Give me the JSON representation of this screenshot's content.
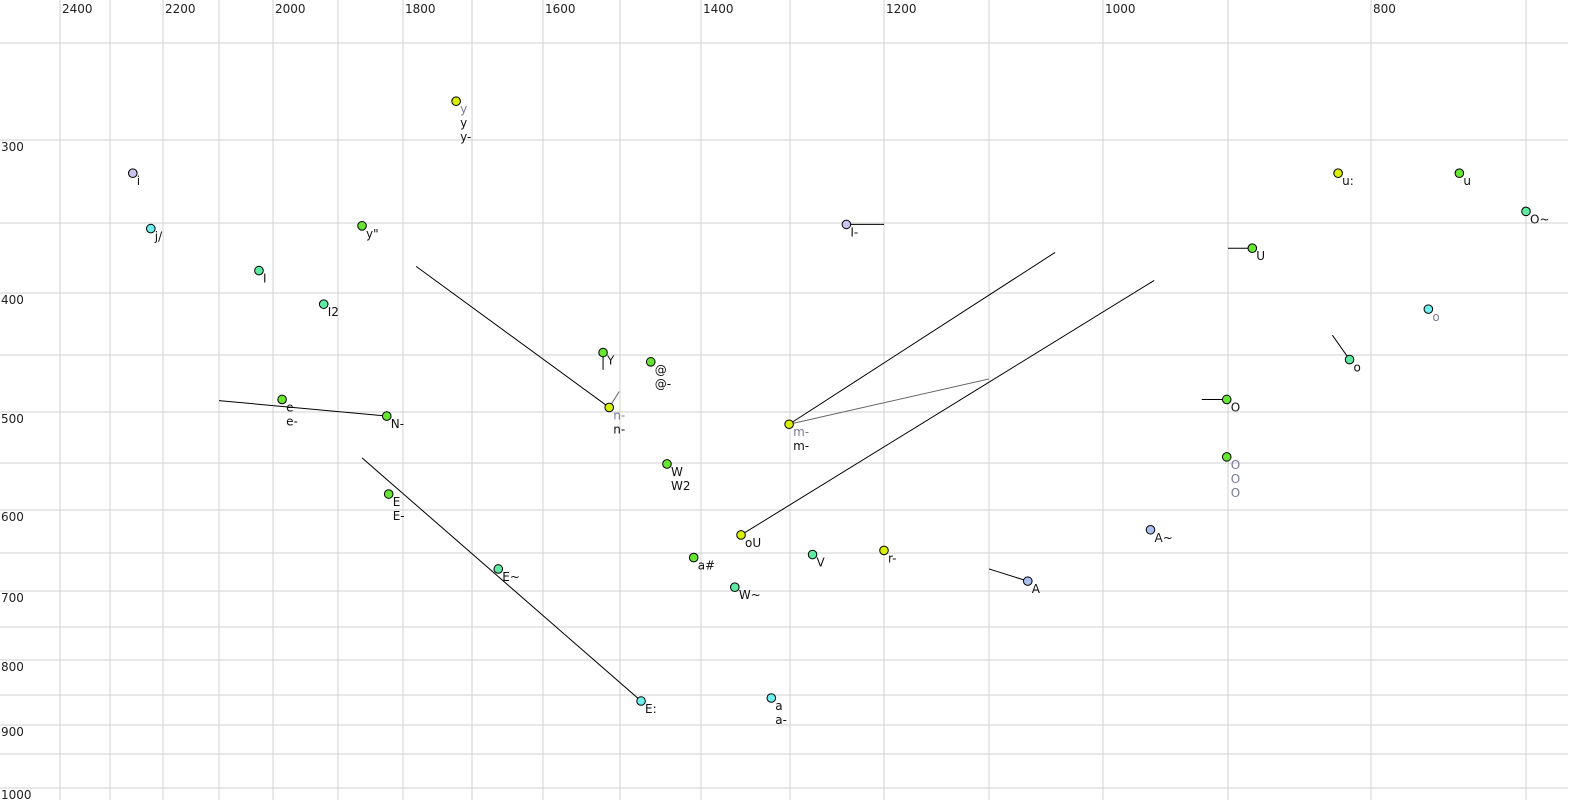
{
  "chart_data": {
    "type": "scatter",
    "title": "",
    "xlabel": "",
    "ylabel": "",
    "x_axis": {
      "position": "top",
      "reversed": true,
      "scale": "nonlinear (auditory)",
      "tick_labels": [
        "2400",
        "2200",
        "2000",
        "1800",
        "1600",
        "1400",
        "1200",
        "1000",
        "800"
      ],
      "ticks": [
        2400,
        2200,
        2000,
        1800,
        1600,
        1400,
        1200,
        1000,
        800
      ],
      "gridlines": [
        2400,
        2300,
        2200,
        2100,
        2000,
        1900,
        1800,
        1700,
        1600,
        1500,
        1400,
        1300,
        1200,
        1100,
        1000,
        900,
        800,
        700
      ]
    },
    "y_axis": {
      "position": "left",
      "reversed": true,
      "scale": "nonlinear (auditory)",
      "tick_labels": [
        "300",
        "400",
        "500",
        "600",
        "700",
        "800",
        "900",
        "1000"
      ],
      "ticks": [
        300,
        400,
        500,
        600,
        700,
        800,
        900,
        1000
      ],
      "gridlines": [
        250,
        300,
        350,
        400,
        450,
        500,
        550,
        600,
        650,
        700,
        750,
        800,
        850,
        900,
        950,
        1000
      ]
    },
    "grid": true,
    "colors": {
      "yellow": "#d8f000",
      "green": "#66e633",
      "teal": "#5eeaa2",
      "cyan": "#6ef0f0",
      "lavender": "#cbc4f2",
      "blue": "#a8bff0",
      "grid": "#d0d0d0"
    },
    "points": [
      {
        "x": 1723,
        "y": 280,
        "color": "yellow",
        "labels": [
          {
            "t": "y",
            "gray": true
          },
          {
            "t": "y"
          },
          {
            "t": "y-"
          }
        ]
      },
      {
        "x": 2257,
        "y": 320,
        "color": "lavender",
        "labels": [
          {
            "t": "i"
          }
        ]
      },
      {
        "x": 2223,
        "y": 354,
        "color": "cyan",
        "labels": [
          {
            "t": "j/"
          }
        ]
      },
      {
        "x": 2026,
        "y": 384,
        "color": "teal",
        "labels": [
          {
            "t": "I"
          }
        ]
      },
      {
        "x": 1922,
        "y": 409,
        "color": "teal",
        "labels": [
          {
            "t": "I2"
          }
        ]
      },
      {
        "x": 1863,
        "y": 352,
        "color": "green",
        "labels": [
          {
            "t": "y\""
          }
        ]
      },
      {
        "x": 1986,
        "y": 489,
        "color": "green",
        "labels": [
          {
            "t": "e"
          },
          {
            "t": "e-"
          }
        ]
      },
      {
        "x": 1825,
        "y": 504,
        "color": "green",
        "labels": [
          {
            "t": "N-"
          }
        ]
      },
      {
        "x": 1822,
        "y": 583,
        "color": "green",
        "labels": [
          {
            "t": "E"
          },
          {
            "t": "E-"
          }
        ]
      },
      {
        "x": 1663,
        "y": 671,
        "color": "teal",
        "labels": [
          {
            "t": "E~"
          }
        ]
      },
      {
        "x": 1474,
        "y": 860,
        "color": "cyan",
        "labels": [
          {
            "t": "E:"
          }
        ]
      },
      {
        "x": 1522,
        "y": 448,
        "color": "green",
        "labels": [
          {
            "t": "Y"
          }
        ]
      },
      {
        "x": 1462,
        "y": 456,
        "color": "green",
        "labels": [
          {
            "t": "@"
          },
          {
            "t": "@-"
          }
        ]
      },
      {
        "x": 1514,
        "y": 496,
        "color": "yellow",
        "labels": [
          {
            "t": "n-",
            "gray": true
          },
          {
            "t": "n-"
          }
        ]
      },
      {
        "x": 1442,
        "y": 551,
        "color": "green",
        "labels": [
          {
            "t": "W"
          },
          {
            "t": "W2"
          }
        ]
      },
      {
        "x": 1355,
        "y": 629,
        "color": "yellow",
        "labels": [
          {
            "t": "oU"
          }
        ]
      },
      {
        "x": 1409,
        "y": 656,
        "color": "green",
        "labels": [
          {
            "t": "a#"
          }
        ]
      },
      {
        "x": 1362,
        "y": 695,
        "color": "teal",
        "labels": [
          {
            "t": "W~"
          }
        ]
      },
      {
        "x": 1321,
        "y": 855,
        "color": "cyan",
        "labels": [
          {
            "t": "a"
          },
          {
            "t": "a-"
          }
        ]
      },
      {
        "x": 1301,
        "y": 512,
        "color": "yellow",
        "labels": [
          {
            "t": "m-",
            "gray": true
          },
          {
            "t": "m-"
          }
        ]
      },
      {
        "x": 1240,
        "y": 351,
        "color": "lavender",
        "labels": [
          {
            "t": "I-"
          }
        ]
      },
      {
        "x": 1276,
        "y": 652,
        "color": "teal",
        "labels": [
          {
            "t": "V"
          }
        ]
      },
      {
        "x": 1200,
        "y": 647,
        "color": "yellow",
        "labels": [
          {
            "t": "r-"
          }
        ]
      },
      {
        "x": 1066,
        "y": 687,
        "color": "blue",
        "labels": [
          {
            "t": "A"
          }
        ]
      },
      {
        "x": 962,
        "y": 623,
        "color": "blue",
        "labels": [
          {
            "t": "A~"
          }
        ]
      },
      {
        "x": 883,
        "y": 368,
        "color": "green",
        "labels": [
          {
            "t": "U"
          }
        ]
      },
      {
        "x": 901,
        "y": 489,
        "color": "green",
        "labels": [
          {
            "t": "O"
          }
        ]
      },
      {
        "x": 901,
        "y": 544,
        "color": "green",
        "labels": [
          {
            "t": "O",
            "gray": true
          },
          {
            "t": "O",
            "gray": true
          },
          {
            "t": "O",
            "gray": true
          }
        ]
      },
      {
        "x": 823,
        "y": 320,
        "color": "yellow",
        "labels": [
          {
            "t": "u:"
          }
        ]
      },
      {
        "x": 743,
        "y": 320,
        "color": "green",
        "labels": [
          {
            "t": "u"
          }
        ]
      },
      {
        "x": 700,
        "y": 343,
        "color": "teal",
        "labels": [
          {
            "t": "O~"
          }
        ]
      },
      {
        "x": 763,
        "y": 413,
        "color": "cyan",
        "labels": [
          {
            "t": "o",
            "gray": true
          }
        ]
      },
      {
        "x": 815,
        "y": 454,
        "color": "teal",
        "labels": [
          {
            "t": "o"
          }
        ]
      }
    ],
    "trajectories": [
      {
        "from": [
          2100,
          490
        ],
        "to": [
          1825,
          504
        ],
        "gray": false
      },
      {
        "from": [
          1863,
          545
        ],
        "to": [
          1474,
          860
        ],
        "gray": false
      },
      {
        "from": [
          1781,
          381
        ],
        "to": [
          1514,
          496
        ],
        "gray": false
      },
      {
        "from": [
          1514,
          496
        ],
        "to": [
          1501,
          482
        ],
        "gray": true
      },
      {
        "from": [
          1522,
          448
        ],
        "to": [
          1522,
          463
        ],
        "gray": false
      },
      {
        "from": [
          1301,
          512
        ],
        "to": [
          1042,
          371
        ],
        "gray": false
      },
      {
        "from": [
          1301,
          512
        ],
        "to": [
          1100,
          471
        ],
        "gray": true
      },
      {
        "from": [
          1355,
          629
        ],
        "to": [
          959,
          391
        ],
        "gray": false
      },
      {
        "from": [
          1240,
          351
        ],
        "to": [
          1200,
          351
        ],
        "gray": false
      },
      {
        "from": [
          1100,
          671
        ],
        "to": [
          1066,
          687
        ],
        "gray": false
      },
      {
        "from": [
          900,
          368
        ],
        "to": [
          883,
          368
        ],
        "gray": false
      },
      {
        "from": [
          921,
          489
        ],
        "to": [
          901,
          489
        ],
        "gray": false
      },
      {
        "from": [
          827,
          434
        ],
        "to": [
          815,
          454
        ],
        "gray": false
      },
      {
        "from": [
          1200,
          647
        ],
        "to": [
          1200,
          642
        ],
        "gray": false
      }
    ]
  }
}
